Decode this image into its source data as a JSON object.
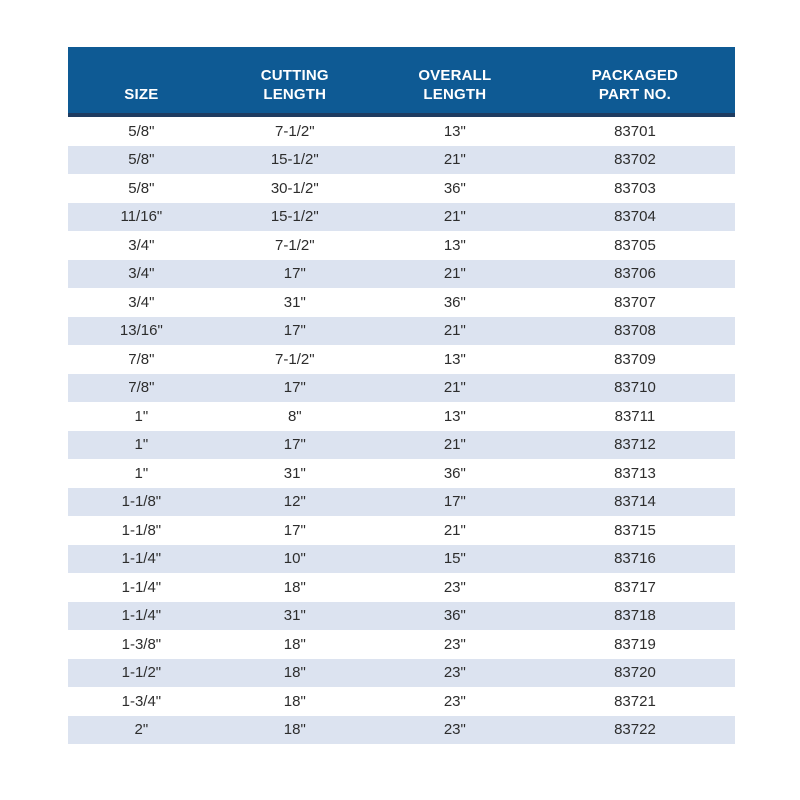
{
  "colors": {
    "header_bg": "#0e5a94",
    "header_rule": "#1e3c61",
    "row_alt_bg": "#dce3f0",
    "row_bg": "#ffffff",
    "cell_text": "#2d2d2d",
    "header_text": "#ffffff"
  },
  "table": {
    "columns": [
      {
        "label_lines": [
          "SIZE"
        ]
      },
      {
        "label_lines": [
          "CUTTING",
          "LENGTH"
        ]
      },
      {
        "label_lines": [
          "OVERALL",
          "LENGTH"
        ]
      },
      {
        "label_lines": [
          "PACKAGED",
          "PART NO."
        ]
      }
    ],
    "rows": [
      [
        "5/8\"",
        "7-1/2\"",
        "13\"",
        "83701"
      ],
      [
        "5/8\"",
        "15-1/2\"",
        "21\"",
        "83702"
      ],
      [
        "5/8\"",
        "30-1/2\"",
        "36\"",
        "83703"
      ],
      [
        "11/16\"",
        "15-1/2\"",
        "21\"",
        "83704"
      ],
      [
        "3/4\"",
        "7-1/2\"",
        "13\"",
        "83705"
      ],
      [
        "3/4\"",
        "17\"",
        "21\"",
        "83706"
      ],
      [
        "3/4\"",
        "31\"",
        "36\"",
        "83707"
      ],
      [
        "13/16\"",
        "17\"",
        "21\"",
        "83708"
      ],
      [
        "7/8\"",
        "7-1/2\"",
        "13\"",
        "83709"
      ],
      [
        "7/8\"",
        "17\"",
        "21\"",
        "83710"
      ],
      [
        "1\"",
        "8\"",
        "13\"",
        "83711"
      ],
      [
        "1\"",
        "17\"",
        "21\"",
        "83712"
      ],
      [
        "1\"",
        "31\"",
        "36\"",
        "83713"
      ],
      [
        "1-1/8\"",
        "12\"",
        "17\"",
        "83714"
      ],
      [
        "1-1/8\"",
        "17\"",
        "21\"",
        "83715"
      ],
      [
        "1-1/4\"",
        "10\"",
        "15\"",
        "83716"
      ],
      [
        "1-1/4\"",
        "18\"",
        "23\"",
        "83717"
      ],
      [
        "1-1/4\"",
        "31\"",
        "36\"",
        "83718"
      ],
      [
        "1-3/8\"",
        "18\"",
        "23\"",
        "83719"
      ],
      [
        "1-1/2\"",
        "18\"",
        "23\"",
        "83720"
      ],
      [
        "1-3/4\"",
        "18\"",
        "23\"",
        "83721"
      ],
      [
        "2\"",
        "18\"",
        "23\"",
        "83722"
      ]
    ]
  }
}
